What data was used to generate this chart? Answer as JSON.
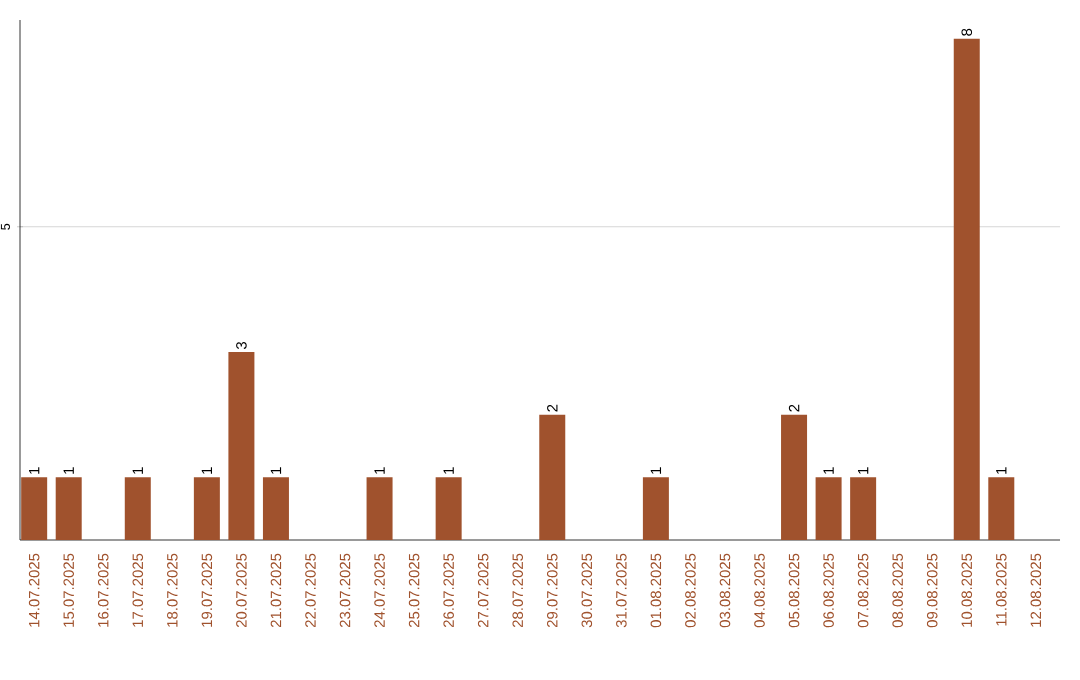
{
  "chart_data": {
    "type": "bar",
    "categories": [
      "14.07.2025",
      "15.07.2025",
      "16.07.2025",
      "17.07.2025",
      "18.07.2025",
      "19.07.2025",
      "20.07.2025",
      "21.07.2025",
      "22.07.2025",
      "23.07.2025",
      "24.07.2025",
      "25.07.2025",
      "26.07.2025",
      "27.07.2025",
      "28.07.2025",
      "29.07.2025",
      "30.07.2025",
      "31.07.2025",
      "01.08.2025",
      "02.08.2025",
      "03.08.2025",
      "04.08.2025",
      "05.08.2025",
      "06.08.2025",
      "07.08.2025",
      "08.08.2025",
      "09.08.2025",
      "10.08.2025",
      "11.08.2025",
      "12.08.2025"
    ],
    "values": [
      1,
      1,
      0,
      1,
      0,
      1,
      3,
      1,
      0,
      0,
      1,
      0,
      1,
      0,
      0,
      2,
      0,
      0,
      1,
      0,
      0,
      0,
      2,
      1,
      1,
      0,
      0,
      8,
      1,
      0
    ],
    "value_labels": [
      "1",
      "1",
      null,
      "1",
      null,
      "1",
      "3",
      "1",
      null,
      null,
      "1",
      null,
      "1",
      null,
      null,
      "2",
      null,
      null,
      "1",
      null,
      null,
      null,
      "2",
      "1",
      "1",
      null,
      null,
      "8",
      "1",
      null
    ],
    "color": "#a0522d",
    "ylim": [
      0,
      8.3
    ],
    "yticks": [
      5
    ],
    "grid": "y"
  }
}
